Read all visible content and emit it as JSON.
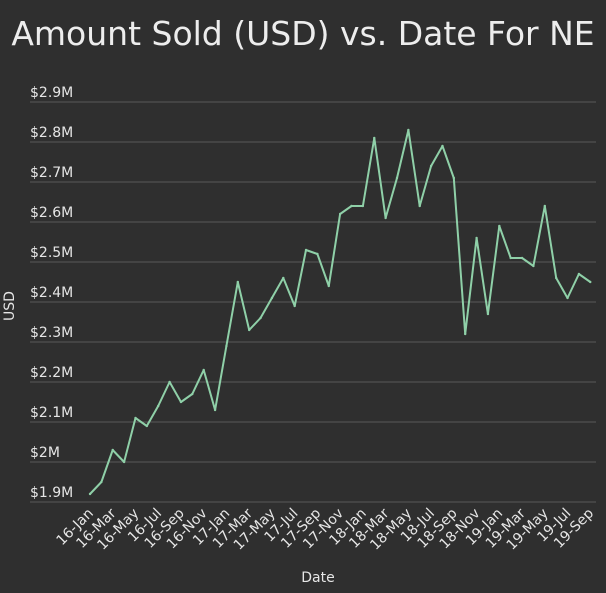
{
  "chart_data": {
    "type": "line",
    "title": "Amount Sold (USD) vs. Date For NE",
    "xlabel": "Date",
    "ylabel": "USD",
    "ylim": [
      1.9,
      2.9
    ],
    "yticks": [
      1.9,
      2.0,
      2.1,
      2.2,
      2.3,
      2.4,
      2.5,
      2.6,
      2.7,
      2.8,
      2.9
    ],
    "ytick_labels": [
      "$1.9M",
      "$2M",
      "$2.1M",
      "$2.2M",
      "$2.3M",
      "$2.4M",
      "$2.5M",
      "$2.6M",
      "$2.7M",
      "$2.8M",
      "$2.9M"
    ],
    "xtick_labels": [
      "16-Jan",
      "16-Mar",
      "16-May",
      "16-Jul",
      "16-Sep",
      "16-Nov",
      "17-Jan",
      "17-Mar",
      "17-May",
      "17-Jul",
      "17-Sep",
      "17-Nov",
      "18-Jan",
      "18-Mar",
      "18-May",
      "18-Jul",
      "18-Sep",
      "18-Nov",
      "19-Jan",
      "19-Mar",
      "19-May",
      "19-Jul",
      "19-Sep"
    ],
    "x": [
      "16-Jan",
      "16-Feb",
      "16-Mar",
      "16-Apr",
      "16-May",
      "16-Jun",
      "16-Jul",
      "16-Aug",
      "16-Sep",
      "16-Oct",
      "16-Nov",
      "16-Dec",
      "17-Jan",
      "17-Feb",
      "17-Mar",
      "17-Apr",
      "17-May",
      "17-Jun",
      "17-Jul",
      "17-Aug",
      "17-Sep",
      "17-Oct",
      "17-Nov",
      "17-Dec",
      "18-Jan",
      "18-Feb",
      "18-Mar",
      "18-Apr",
      "18-May",
      "18-Jun",
      "18-Jul",
      "18-Aug",
      "18-Sep",
      "18-Oct",
      "18-Nov",
      "18-Dec",
      "19-Jan",
      "19-Feb",
      "19-Mar",
      "19-Apr",
      "19-May",
      "19-Jun",
      "19-Jul",
      "19-Aug",
      "19-Sep"
    ],
    "series": [
      {
        "color": "#8fd0a8",
        "values": [
          1.92,
          1.95,
          2.03,
          2.0,
          2.11,
          2.09,
          2.14,
          2.2,
          2.15,
          2.17,
          2.23,
          2.13,
          2.29,
          2.45,
          2.33,
          2.36,
          2.41,
          2.46,
          2.39,
          2.53,
          2.52,
          2.44,
          2.62,
          2.64,
          2.64,
          2.81,
          2.61,
          2.71,
          2.83,
          2.64,
          2.74,
          2.79,
          2.71,
          2.32,
          2.56,
          2.37,
          2.59,
          2.51,
          2.51,
          2.49,
          2.64,
          2.46,
          2.41,
          2.47,
          2.45
        ]
      }
    ],
    "grid": true
  }
}
